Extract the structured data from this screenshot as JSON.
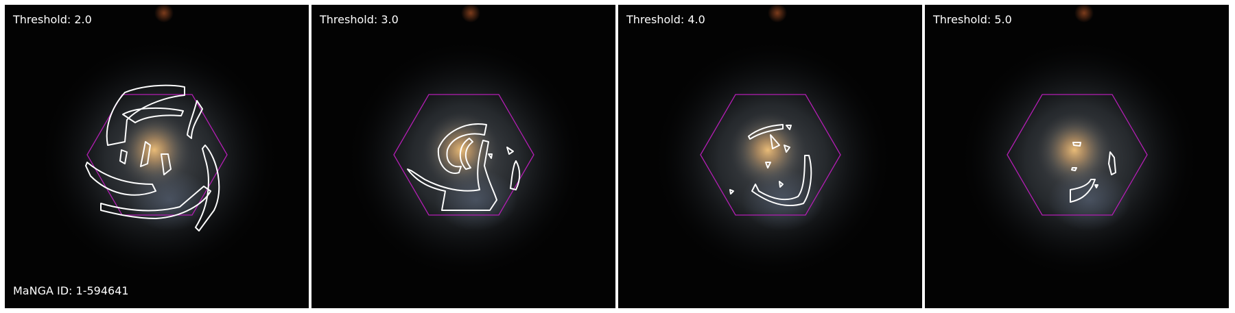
{
  "figure": {
    "panels": [
      {
        "threshold_label": "Threshold: 2.0"
      },
      {
        "threshold_label": "Threshold: 3.0"
      },
      {
        "threshold_label": "Threshold: 4.0"
      },
      {
        "threshold_label": "Threshold: 5.0"
      }
    ],
    "galaxy_id_label": "MaNGA ID: 1-594641"
  },
  "colors": {
    "background": "#030303",
    "contour": "#ffffff",
    "ifu_hexagon": "#b41eb4",
    "label_text": "#ffffff"
  }
}
